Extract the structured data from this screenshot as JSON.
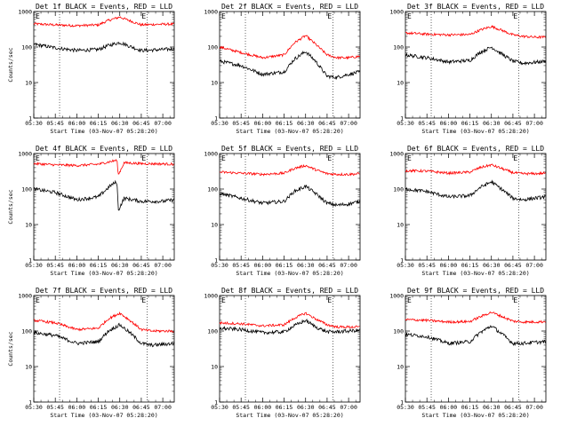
{
  "chart_data": {
    "type": "line",
    "scale": "log-y",
    "ylim": [
      1,
      1000
    ],
    "y_ticks": [
      "1",
      "10",
      "100",
      "1000"
    ],
    "x_ticks": [
      "05:30",
      "05:45",
      "06:00",
      "06:15",
      "06:30",
      "06:45",
      "07:00"
    ],
    "x_tick_minutes": [
      0,
      15,
      30,
      45,
      60,
      75,
      90
    ],
    "xlim_minutes": [
      0,
      98
    ],
    "ylabel": "Counts/sec",
    "xlabel": "Start Time (03-Nov-07 05:28:20)",
    "marker_label": "E",
    "marker_minutes": [
      18,
      79
    ],
    "series_colors": {
      "lld": "#ff0000",
      "events": "#000000"
    },
    "panels": [
      {
        "title": "Det 1f BLACK = Events, RED = LLD",
        "lld": {
          "x": [
            0,
            15,
            30,
            45,
            52,
            60,
            67,
            75,
            82,
            90,
            98
          ],
          "y": [
            450,
            420,
            400,
            420,
            560,
            700,
            550,
            420,
            430,
            440,
            440
          ]
        },
        "events": {
          "x": [
            0,
            15,
            30,
            45,
            52,
            60,
            67,
            75,
            82,
            90,
            98
          ],
          "y": [
            120,
            95,
            80,
            85,
            110,
            135,
            105,
            80,
            82,
            85,
            88
          ]
        }
      },
      {
        "title": "Det 2f BLACK = Events, RED = LLD",
        "lld": {
          "x": [
            0,
            15,
            30,
            45,
            52,
            60,
            67,
            75,
            82,
            90,
            98
          ],
          "y": [
            100,
            70,
            50,
            60,
            130,
            210,
            120,
            60,
            50,
            50,
            55
          ]
        },
        "events": {
          "x": [
            0,
            15,
            30,
            45,
            52,
            60,
            67,
            75,
            82,
            90,
            98
          ],
          "y": [
            40,
            30,
            17,
            20,
            45,
            75,
            40,
            15,
            14,
            17,
            20
          ]
        }
      },
      {
        "title": "Det 3f BLACK = Events, RED = LLD",
        "lld": {
          "x": [
            0,
            15,
            30,
            45,
            52,
            60,
            67,
            75,
            82,
            90,
            98
          ],
          "y": [
            250,
            230,
            220,
            225,
            300,
            380,
            300,
            220,
            200,
            190,
            190
          ]
        },
        "events": {
          "x": [
            0,
            15,
            30,
            45,
            52,
            60,
            67,
            75,
            82,
            90,
            98
          ],
          "y": [
            60,
            50,
            38,
            42,
            70,
            100,
            65,
            40,
            35,
            37,
            40
          ]
        }
      },
      {
        "title": "Det 4f BLACK = Events, RED = LLD",
        "lld": {
          "x": [
            0,
            15,
            30,
            45,
            54,
            58,
            59,
            63,
            75,
            90,
            98
          ],
          "y": [
            520,
            480,
            460,
            500,
            600,
            650,
            250,
            550,
            520,
            510,
            500
          ]
        },
        "events": {
          "x": [
            0,
            15,
            30,
            45,
            54,
            58,
            59,
            63,
            75,
            90,
            98
          ],
          "y": [
            100,
            80,
            50,
            60,
            130,
            160,
            25,
            55,
            45,
            45,
            50
          ]
        }
      },
      {
        "title": "Det 5f BLACK = Events, RED = LLD",
        "lld": {
          "x": [
            0,
            15,
            30,
            45,
            52,
            60,
            67,
            75,
            82,
            90,
            98
          ],
          "y": [
            300,
            280,
            260,
            280,
            380,
            460,
            350,
            270,
            260,
            260,
            270
          ]
        },
        "events": {
          "x": [
            0,
            15,
            30,
            45,
            52,
            60,
            67,
            75,
            82,
            90,
            98
          ],
          "y": [
            75,
            55,
            40,
            45,
            85,
            120,
            75,
            40,
            35,
            38,
            45
          ]
        }
      },
      {
        "title": "Det 6f BLACK = Events, RED = LLD",
        "lld": {
          "x": [
            0,
            15,
            30,
            45,
            52,
            60,
            67,
            75,
            82,
            90,
            98
          ],
          "y": [
            330,
            320,
            280,
            300,
            400,
            480,
            380,
            290,
            270,
            270,
            280
          ]
        },
        "events": {
          "x": [
            0,
            15,
            30,
            45,
            52,
            60,
            67,
            75,
            82,
            90,
            98
          ],
          "y": [
            100,
            85,
            60,
            65,
            110,
            160,
            100,
            55,
            50,
            55,
            60
          ]
        }
      },
      {
        "title": "Det 7f BLACK = Events, RED = LLD",
        "lld": {
          "x": [
            0,
            15,
            30,
            45,
            52,
            60,
            67,
            75,
            82,
            90,
            98
          ],
          "y": [
            200,
            170,
            110,
            120,
            220,
            320,
            200,
            110,
            100,
            100,
            100
          ]
        },
        "events": {
          "x": [
            0,
            15,
            30,
            45,
            52,
            60,
            67,
            75,
            82,
            90,
            98
          ],
          "y": [
            90,
            75,
            45,
            50,
            100,
            150,
            90,
            45,
            40,
            42,
            45
          ]
        }
      },
      {
        "title": "Det 8f BLACK = Events, RED = LLD",
        "lld": {
          "x": [
            0,
            15,
            30,
            45,
            52,
            60,
            67,
            75,
            82,
            90,
            98
          ],
          "y": [
            170,
            160,
            140,
            150,
            230,
            320,
            220,
            150,
            130,
            130,
            130
          ]
        },
        "events": {
          "x": [
            0,
            15,
            30,
            45,
            52,
            60,
            67,
            75,
            82,
            90,
            98
          ],
          "y": [
            120,
            110,
            90,
            95,
            140,
            200,
            130,
            95,
            95,
            100,
            105
          ]
        }
      },
      {
        "title": "Det 9f BLACK = Events, RED = LLD",
        "lld": {
          "x": [
            0,
            15,
            30,
            45,
            52,
            60,
            67,
            75,
            82,
            90,
            98
          ],
          "y": [
            210,
            200,
            180,
            185,
            250,
            340,
            260,
            190,
            180,
            180,
            185
          ]
        },
        "events": {
          "x": [
            0,
            15,
            30,
            45,
            52,
            60,
            67,
            75,
            82,
            90,
            98
          ],
          "y": [
            80,
            70,
            45,
            50,
            90,
            140,
            85,
            45,
            45,
            48,
            50
          ]
        }
      }
    ]
  }
}
